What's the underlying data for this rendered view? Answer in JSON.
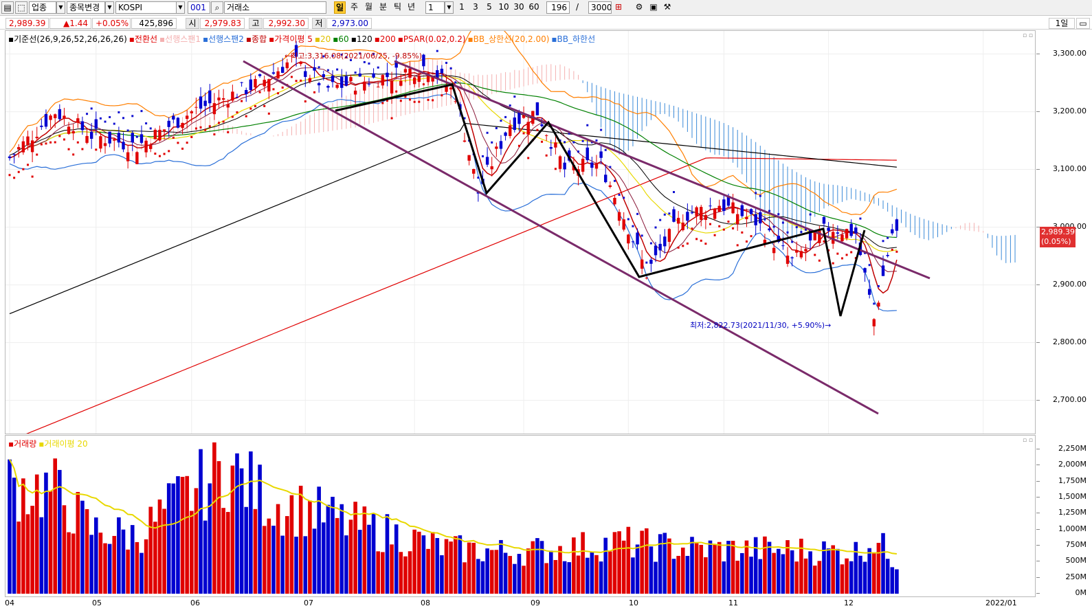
{
  "toolbar": {
    "market_type": "업종",
    "change_item": "종목변경",
    "symbol": "KOSPI",
    "code": "001",
    "exchange": "거래소",
    "periods": [
      "일",
      "주",
      "월",
      "분",
      "틱",
      "년"
    ],
    "active_period": "일",
    "unit_value": "1",
    "intervals": [
      "1",
      "3",
      "5",
      "10",
      "30",
      "60"
    ],
    "bar_count": "196",
    "separator": "/",
    "max_count": "3000",
    "view_label": "1일"
  },
  "quote": {
    "last": "2,989.39",
    "change": "▲1.44",
    "change_pct": "+0.05%",
    "volume": "425,896",
    "open_label": "시",
    "open": "2,979.83",
    "high_label": "고",
    "high": "2,992.30",
    "low_label": "저",
    "low": "2,973.00"
  },
  "price_legend": [
    {
      "text": "기준선(26,9,26,52,26,26,26)",
      "color": "#000000"
    },
    {
      "text": "전환선",
      "color": "#e00000"
    },
    {
      "text": "선행스팬1",
      "color": "#f4b0b0"
    },
    {
      "text": "선행스팬2",
      "color": "#2a6fd8"
    },
    {
      "text": "종합",
      "color": "#c00000"
    },
    {
      "text": "가격이평 5",
      "color": "#e00000"
    },
    {
      "text": "20",
      "color": "#e0c000"
    },
    {
      "text": "60",
      "color": "#008000"
    },
    {
      "text": "120",
      "color": "#000000"
    },
    {
      "text": "200",
      "color": "#e00000"
    },
    {
      "text": "PSAR(0.02,0.2)",
      "color": "#e00000"
    },
    {
      "text": "BB_상한선(20,2.00)",
      "color": "#ff7f00"
    },
    {
      "text": "BB_하한선",
      "color": "#2a6fd8"
    }
  ],
  "volume_legend": [
    {
      "text": "거래량",
      "color": "#e00000"
    },
    {
      "text": "거래이평 20",
      "color": "#e8d800"
    }
  ],
  "price_axis": {
    "ticks": [
      "3,300.00",
      "3,200.00",
      "3,100.00",
      "3,000.00",
      "2,900.00",
      "2,800.00",
      "2,700.00"
    ],
    "tag_price": "2,989.39",
    "tag_pct": "(0.05%)"
  },
  "volume_axis": {
    "ticks": [
      "2,250M",
      "2,000M",
      "1,750M",
      "1,500M",
      "1,250M",
      "1,000M",
      "750M",
      "500M",
      "250M",
      "0M"
    ]
  },
  "date_axis": [
    "04",
    "05",
    "06",
    "07",
    "08",
    "09",
    "10",
    "11",
    "12",
    "2022/01"
  ],
  "annotations": {
    "high": "←최고:3,316.08(2021/06/25, -9.85%)",
    "low": "최저:2,822.73(2021/11/30, +5.90%)→"
  },
  "colors": {
    "up": "#e00000",
    "down": "#0000d0",
    "trend_channel": "#7a2a6a",
    "pattern_line": "#000000",
    "cloud_up": "#f4b0b0",
    "cloud_down": "#3a8ad8",
    "bb_upper": "#ff7f00",
    "bb_lower": "#2a6fd8",
    "ma5": "#c00000",
    "ma20": "#e8d800",
    "ma60": "#008000",
    "ma120": "#000000",
    "ma200": "#e00000",
    "psar_up": "#e00000",
    "psar_down": "#1010d0"
  },
  "chart_data": {
    "type": "candlestick",
    "ylim": [
      2640,
      3340
    ],
    "x_months": [
      "04",
      "05",
      "06",
      "07",
      "08",
      "09",
      "10",
      "11",
      "12"
    ],
    "close_waypoints": [
      [
        0,
        3120
      ],
      [
        10,
        3200
      ],
      [
        18,
        3160
      ],
      [
        28,
        3140
      ],
      [
        40,
        3200
      ],
      [
        55,
        3250
      ],
      [
        62,
        3290
      ],
      [
        70,
        3240
      ],
      [
        82,
        3260
      ],
      [
        92,
        3280
      ],
      [
        98,
        3230
      ],
      [
        103,
        3060
      ],
      [
        110,
        3180
      ],
      [
        116,
        3200
      ],
      [
        122,
        3100
      ],
      [
        130,
        3110
      ],
      [
        136,
        3000
      ],
      [
        140,
        2920
      ],
      [
        148,
        3020
      ],
      [
        156,
        3040
      ],
      [
        164,
        3010
      ],
      [
        172,
        2940
      ],
      [
        180,
        3000
      ],
      [
        186,
        2990
      ],
      [
        190,
        2840
      ],
      [
        194,
        2990
      ],
      [
        196,
        2989
      ]
    ],
    "volume_waypoints_M": [
      [
        0,
        1700
      ],
      [
        10,
        1600
      ],
      [
        18,
        1000
      ],
      [
        28,
        900
      ],
      [
        38,
        1500
      ],
      [
        48,
        1950
      ],
      [
        58,
        1400
      ],
      [
        66,
        1300
      ],
      [
        74,
        1100
      ],
      [
        86,
        900
      ],
      [
        96,
        700
      ],
      [
        110,
        650
      ],
      [
        122,
        700
      ],
      [
        134,
        800
      ],
      [
        150,
        700
      ],
      [
        170,
        680
      ],
      [
        186,
        650
      ],
      [
        190,
        850
      ],
      [
        196,
        430
      ]
    ],
    "volume_ylim_M": [
      0,
      2400
    ]
  }
}
